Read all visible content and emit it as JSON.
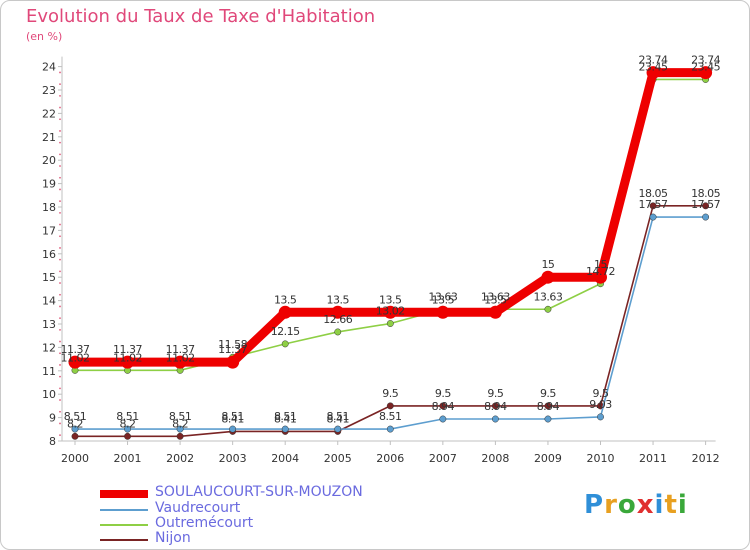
{
  "chart_data": {
    "type": "line",
    "title": "Evolution du Taux de Taxe d'Habitation",
    "ylabel": "(en %)",
    "xlabel": "",
    "x": [
      "2000",
      "2001",
      "2002",
      "2003",
      "2004",
      "2005",
      "2006",
      "2007",
      "2008",
      "2009",
      "2010",
      "2011",
      "2012"
    ],
    "yticks": [
      "8",
      "9",
      "10",
      "11",
      "12",
      "13",
      "14",
      "15",
      "16",
      "17",
      "18",
      "19",
      "20",
      "21",
      "22",
      "23",
      "24"
    ],
    "ylim": [
      8,
      24
    ],
    "grid": false,
    "series": [
      {
        "name": "SOULAUCOURT-SUR-MOUZON",
        "color": "#ee0000",
        "values": [
          11.37,
          11.37,
          11.37,
          11.37,
          13.5,
          13.5,
          13.5,
          13.5,
          13.5,
          15,
          15,
          23.74,
          23.74
        ],
        "labels": [
          "11.37",
          "11.37",
          "11.37",
          "11.37",
          "13.5",
          "13.5",
          "13.5",
          "13.5",
          "13.5",
          "15",
          "15",
          "23.74",
          "23.74"
        ]
      },
      {
        "name": "Vaudrecourt",
        "color": "#5d9ecf",
        "values": [
          8.51,
          8.51,
          8.51,
          8.51,
          8.51,
          8.51,
          8.51,
          8.94,
          8.94,
          8.94,
          9.03,
          17.57,
          17.57
        ],
        "labels": [
          "8.51",
          "8.51",
          "8.51",
          "8.51",
          "8.51",
          "8.51",
          "8.51",
          "8.94",
          "8.94",
          "8.94",
          "9.03",
          "17.57",
          "17.57"
        ]
      },
      {
        "name": "Outremécourt",
        "color": "#8ecf45",
        "values": [
          11.02,
          11.02,
          11.02,
          11.58,
          12.15,
          12.66,
          13.02,
          13.63,
          13.63,
          13.63,
          14.72,
          23.45,
          23.45
        ],
        "labels": [
          "11.02",
          "11.02",
          "11.02",
          "11.58",
          "12.15",
          "12.66",
          "13.02",
          "13.63",
          "13.63",
          "13.63",
          "14.72",
          "23.45",
          "23.45"
        ]
      },
      {
        "name": "Nijon",
        "color": "#7a2424",
        "values": [
          8.2,
          8.2,
          8.2,
          8.41,
          8.41,
          8.41,
          9.5,
          9.5,
          9.5,
          9.5,
          9.5,
          18.05,
          18.05
        ],
        "labels": [
          "8.2",
          "8.2",
          "8.2",
          "8.41",
          "8.41",
          "8.41",
          "9.5",
          "9.5",
          "9.5",
          "9.5",
          "9.5",
          "18.05",
          "18.05"
        ]
      }
    ]
  },
  "logo": {
    "text": "Proxiti",
    "letters": [
      "P",
      "r",
      "o",
      "x",
      "i",
      "t",
      "i"
    ],
    "colors": [
      "#2f8fd8",
      "#e8a020",
      "#3aa83a",
      "#e03030",
      "#2f8fd8",
      "#e8a020",
      "#3aa83a"
    ]
  }
}
